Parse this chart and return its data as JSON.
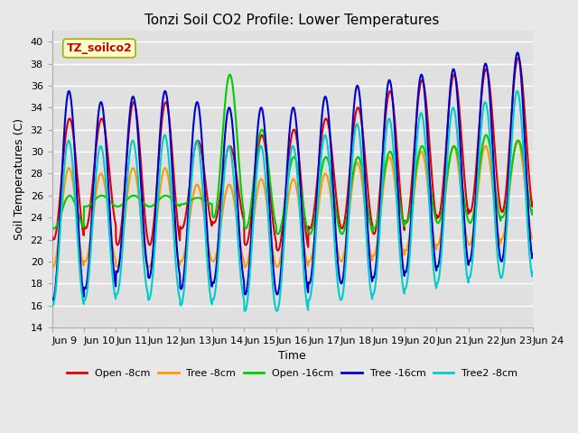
{
  "title": "Tonzi Soil CO2 Profile: Lower Temperatures",
  "xlabel": "Time",
  "ylabel": "Soil Temperatures (C)",
  "ylim": [
    14,
    41
  ],
  "yticks": [
    14,
    16,
    18,
    20,
    22,
    24,
    26,
    28,
    30,
    32,
    34,
    36,
    38,
    40
  ],
  "annotation_text": "TZ_soilco2",
  "annotation_color": "#cc0000",
  "annotation_bg": "#ffffcc",
  "annotation_border": "#aaaa00",
  "series": {
    "Open -8cm": {
      "color": "#dd0000",
      "lw": 1.5
    },
    "Tree -8cm": {
      "color": "#ff9900",
      "lw": 1.5
    },
    "Open -16cm": {
      "color": "#00cc00",
      "lw": 1.5
    },
    "Tree -16cm": {
      "color": "#0000cc",
      "lw": 1.5
    },
    "Tree2 -8cm": {
      "color": "#00cccc",
      "lw": 1.5
    }
  },
  "xtick_labels": [
    "Jun 9",
    "Jun 10",
    "Jun 11",
    "Jun 12",
    "Jun 13",
    "Jun 14",
    "Jun 15",
    "Jun 16",
    "Jun 17",
    "Jun 18",
    "Jun 19",
    "Jun 20",
    "Jun 21",
    "Jun 22",
    "Jun 23",
    "Jun 24"
  ],
  "fig_facecolor": "#e8e8e8",
  "axes_facecolor": "#e0e0e0",
  "grid_color": "#ffffff",
  "figsize": [
    6.4,
    4.8
  ],
  "dpi": 100
}
